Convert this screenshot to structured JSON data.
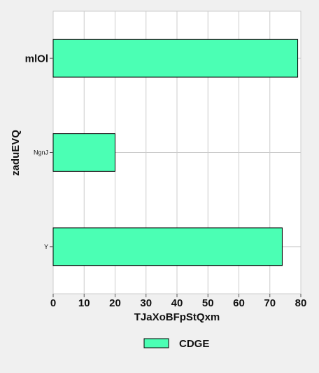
{
  "colors": {
    "page_background": "#f0f0f0",
    "plot_background": "#ffffff",
    "grid": "#cccccc",
    "bar_fill": "#4bffb4",
    "bar_stroke": "#000000"
  },
  "chart_data": {
    "type": "bar",
    "orientation": "horizontal",
    "categories": [
      "mlOl",
      "NgnJ",
      "Y"
    ],
    "series": [
      {
        "name": "CDGE",
        "values": [
          79,
          20,
          74
        ]
      }
    ],
    "title": "",
    "xlabel": "TJaXoBFpStQxm",
    "ylabel": "zaduEVQ",
    "xlim": [
      0,
      80
    ],
    "xticks": [
      0,
      10,
      20,
      30,
      40,
      50,
      60,
      70,
      80
    ],
    "grid": true,
    "legend_position": "bottom"
  }
}
